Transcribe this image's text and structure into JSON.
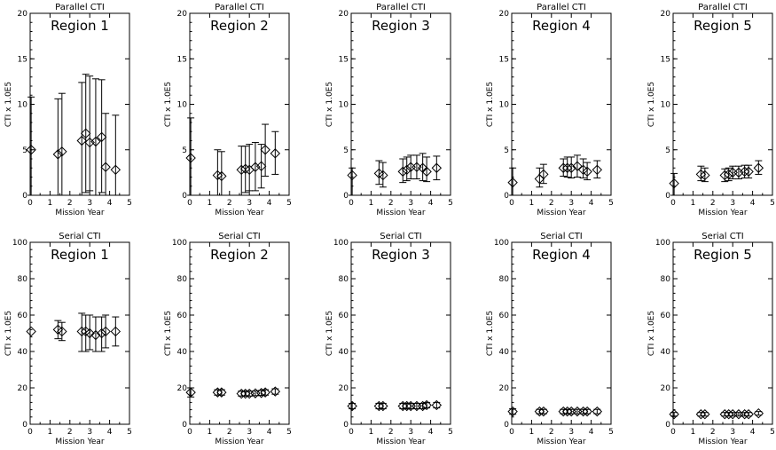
{
  "chart_data": [
    {
      "type": "scatter",
      "row": 0,
      "col": 0,
      "title": "Parallel CTI",
      "region": "Region 1",
      "xlabel": "Mission Year",
      "ylabel": "CTI x 1.0E5",
      "xlim": [
        0,
        5
      ],
      "ylim": [
        0,
        20
      ],
      "xticks": [
        0,
        1,
        2,
        3,
        4,
        5
      ],
      "yticks": [
        0,
        5,
        10,
        15,
        20
      ],
      "points": [
        {
          "x": 0.05,
          "y": 5.0,
          "lo": 0,
          "hi": 10.8
        },
        {
          "x": 1.4,
          "y": 4.5,
          "lo": 0,
          "hi": 10.6
        },
        {
          "x": 1.6,
          "y": 4.8,
          "lo": 0,
          "hi": 11.2
        },
        {
          "x": 2.6,
          "y": 6.0,
          "lo": 0,
          "hi": 12.4
        },
        {
          "x": 2.8,
          "y": 6.8,
          "lo": 0.3,
          "hi": 13.3
        },
        {
          "x": 3.0,
          "y": 5.8,
          "lo": 0.5,
          "hi": 13.1
        },
        {
          "x": 3.3,
          "y": 5.9,
          "lo": 0,
          "hi": 12.8
        },
        {
          "x": 3.6,
          "y": 6.4,
          "lo": 0.3,
          "hi": 12.7
        },
        {
          "x": 3.8,
          "y": 3.1,
          "lo": 0,
          "hi": 9.0
        },
        {
          "x": 4.3,
          "y": 2.8,
          "lo": 0,
          "hi": 8.8
        }
      ]
    },
    {
      "type": "scatter",
      "row": 0,
      "col": 1,
      "title": "Parallel CTI",
      "region": "Region 2",
      "xlabel": "Mission Year",
      "ylabel": "CTI x 1.0E5",
      "xlim": [
        0,
        5
      ],
      "ylim": [
        0,
        20
      ],
      "xticks": [
        0,
        1,
        2,
        3,
        4,
        5
      ],
      "yticks": [
        0,
        5,
        10,
        15,
        20
      ],
      "points": [
        {
          "x": 0.05,
          "y": 4.1,
          "lo": 0,
          "hi": 8.5
        },
        {
          "x": 1.4,
          "y": 2.2,
          "lo": 0,
          "hi": 5.0
        },
        {
          "x": 1.6,
          "y": 2.1,
          "lo": 0,
          "hi": 4.8
        },
        {
          "x": 2.6,
          "y": 2.8,
          "lo": 0,
          "hi": 5.4
        },
        {
          "x": 2.8,
          "y": 2.9,
          "lo": 0.3,
          "hi": 5.4
        },
        {
          "x": 3.0,
          "y": 2.8,
          "lo": 0.5,
          "hi": 5.6
        },
        {
          "x": 3.3,
          "y": 3.1,
          "lo": 0.5,
          "hi": 5.8
        },
        {
          "x": 3.6,
          "y": 3.2,
          "lo": 0.8,
          "hi": 5.6
        },
        {
          "x": 3.8,
          "y": 5.0,
          "lo": 2.1,
          "hi": 7.8
        },
        {
          "x": 4.3,
          "y": 4.6,
          "lo": 2.3,
          "hi": 7.0
        }
      ]
    },
    {
      "type": "scatter",
      "row": 0,
      "col": 2,
      "title": "Parallel CTI",
      "region": "Region 3",
      "xlabel": "Mission Year",
      "ylabel": "CTI x 1.0E5",
      "xlim": [
        0,
        5
      ],
      "ylim": [
        0,
        20
      ],
      "xticks": [
        0,
        1,
        2,
        3,
        4,
        5
      ],
      "yticks": [
        0,
        5,
        10,
        15,
        20
      ],
      "points": [
        {
          "x": 0.05,
          "y": 2.2,
          "lo": 0,
          "hi": 3.0
        },
        {
          "x": 1.4,
          "y": 2.4,
          "lo": 1.2,
          "hi": 3.8
        },
        {
          "x": 1.6,
          "y": 2.2,
          "lo": 0.9,
          "hi": 3.6
        },
        {
          "x": 2.6,
          "y": 2.6,
          "lo": 1.4,
          "hi": 4.0
        },
        {
          "x": 2.8,
          "y": 2.8,
          "lo": 1.6,
          "hi": 4.2
        },
        {
          "x": 3.0,
          "y": 3.1,
          "lo": 1.8,
          "hi": 4.4
        },
        {
          "x": 3.3,
          "y": 3.1,
          "lo": 1.8,
          "hi": 4.4
        },
        {
          "x": 3.6,
          "y": 3.0,
          "lo": 1.6,
          "hi": 4.6
        },
        {
          "x": 3.8,
          "y": 2.6,
          "lo": 1.5,
          "hi": 4.2
        },
        {
          "x": 4.3,
          "y": 3.0,
          "lo": 1.7,
          "hi": 4.3
        }
      ]
    },
    {
      "type": "scatter",
      "row": 0,
      "col": 3,
      "title": "Parallel CTI",
      "region": "Region 4",
      "xlabel": "Mission Year",
      "ylabel": "CTI x 1.0E5",
      "xlim": [
        0,
        5
      ],
      "ylim": [
        0,
        20
      ],
      "xticks": [
        0,
        1,
        2,
        3,
        4,
        5
      ],
      "yticks": [
        0,
        5,
        10,
        15,
        20
      ],
      "points": [
        {
          "x": 0.05,
          "y": 1.4,
          "lo": 0,
          "hi": 3.0
        },
        {
          "x": 1.4,
          "y": 1.8,
          "lo": 0.9,
          "hi": 3.0
        },
        {
          "x": 1.6,
          "y": 2.3,
          "lo": 1.3,
          "hi": 3.4
        },
        {
          "x": 2.6,
          "y": 3.0,
          "lo": 2.1,
          "hi": 4.0
        },
        {
          "x": 2.8,
          "y": 3.0,
          "lo": 2.0,
          "hi": 4.2
        },
        {
          "x": 3.0,
          "y": 3.0,
          "lo": 1.9,
          "hi": 4.2
        },
        {
          "x": 3.3,
          "y": 3.2,
          "lo": 2.0,
          "hi": 4.4
        },
        {
          "x": 3.6,
          "y": 2.8,
          "lo": 1.9,
          "hi": 4.0
        },
        {
          "x": 3.8,
          "y": 2.6,
          "lo": 1.7,
          "hi": 3.6
        },
        {
          "x": 4.3,
          "y": 2.8,
          "lo": 1.9,
          "hi": 3.8
        }
      ]
    },
    {
      "type": "scatter",
      "row": 0,
      "col": 4,
      "title": "Parallel CTI",
      "region": "Region 5",
      "xlabel": "Mission Year",
      "ylabel": "CTI x 1.0E5",
      "xlim": [
        0,
        5
      ],
      "ylim": [
        0,
        20
      ],
      "xticks": [
        0,
        1,
        2,
        3,
        4,
        5
      ],
      "yticks": [
        0,
        5,
        10,
        15,
        20
      ],
      "points": [
        {
          "x": 0.05,
          "y": 1.3,
          "lo": 0,
          "hi": 2.4
        },
        {
          "x": 1.4,
          "y": 2.3,
          "lo": 1.6,
          "hi": 3.2
        },
        {
          "x": 1.6,
          "y": 2.2,
          "lo": 1.5,
          "hi": 3.0
        },
        {
          "x": 2.6,
          "y": 2.2,
          "lo": 1.5,
          "hi": 2.9
        },
        {
          "x": 2.8,
          "y": 2.3,
          "lo": 1.6,
          "hi": 3.0
        },
        {
          "x": 3.0,
          "y": 2.5,
          "lo": 1.8,
          "hi": 3.2
        },
        {
          "x": 3.3,
          "y": 2.5,
          "lo": 1.8,
          "hi": 3.2
        },
        {
          "x": 3.6,
          "y": 2.6,
          "lo": 1.9,
          "hi": 3.3
        },
        {
          "x": 3.8,
          "y": 2.6,
          "lo": 1.9,
          "hi": 3.3
        },
        {
          "x": 4.3,
          "y": 3.0,
          "lo": 2.3,
          "hi": 3.8
        }
      ]
    },
    {
      "type": "scatter",
      "row": 1,
      "col": 0,
      "title": "Serial CTI",
      "region": "Region 1",
      "xlabel": "Mission Year",
      "ylabel": "CTI x 1.0E5",
      "xlim": [
        0,
        5
      ],
      "ylim": [
        0,
        100
      ],
      "xticks": [
        0,
        1,
        2,
        3,
        4,
        5
      ],
      "yticks": [
        0,
        20,
        40,
        60,
        80,
        100
      ],
      "points": [
        {
          "x": 0.05,
          "y": 51,
          "lo": 51,
          "hi": 51
        },
        {
          "x": 1.4,
          "y": 52,
          "lo": 47,
          "hi": 57
        },
        {
          "x": 1.6,
          "y": 51,
          "lo": 46,
          "hi": 56
        },
        {
          "x": 2.6,
          "y": 51,
          "lo": 40,
          "hi": 61
        },
        {
          "x": 2.8,
          "y": 51,
          "lo": 40,
          "hi": 60
        },
        {
          "x": 3.0,
          "y": 50,
          "lo": 41,
          "hi": 60
        },
        {
          "x": 3.3,
          "y": 49,
          "lo": 40,
          "hi": 59
        },
        {
          "x": 3.6,
          "y": 50,
          "lo": 40,
          "hi": 59
        },
        {
          "x": 3.8,
          "y": 51,
          "lo": 42,
          "hi": 60
        },
        {
          "x": 4.3,
          "y": 51,
          "lo": 43,
          "hi": 59
        }
      ]
    },
    {
      "type": "scatter",
      "row": 1,
      "col": 1,
      "title": "Serial CTI",
      "region": "Region 2",
      "xlabel": "Mission Year",
      "ylabel": "CTI x 1.0E5",
      "xlim": [
        0,
        5
      ],
      "ylim": [
        0,
        100
      ],
      "xticks": [
        0,
        1,
        2,
        3,
        4,
        5
      ],
      "yticks": [
        0,
        20,
        40,
        60,
        80,
        100
      ],
      "points": [
        {
          "x": 0.05,
          "y": 17.5,
          "lo": 15,
          "hi": 20
        },
        {
          "x": 1.4,
          "y": 17.5,
          "lo": 16,
          "hi": 19
        },
        {
          "x": 1.6,
          "y": 17.5,
          "lo": 16,
          "hi": 19
        },
        {
          "x": 2.6,
          "y": 16.8,
          "lo": 15.5,
          "hi": 18.2
        },
        {
          "x": 2.8,
          "y": 16.8,
          "lo": 15.5,
          "hi": 18.2
        },
        {
          "x": 3.0,
          "y": 16.8,
          "lo": 15.5,
          "hi": 18.2
        },
        {
          "x": 3.3,
          "y": 17.0,
          "lo": 15.7,
          "hi": 18.3
        },
        {
          "x": 3.6,
          "y": 17.2,
          "lo": 15.8,
          "hi": 18.6
        },
        {
          "x": 3.8,
          "y": 17.5,
          "lo": 16,
          "hi": 19
        },
        {
          "x": 4.3,
          "y": 18.0,
          "lo": 16.5,
          "hi": 19.5
        }
      ]
    },
    {
      "type": "scatter",
      "row": 1,
      "col": 2,
      "title": "Serial CTI",
      "region": "Region 3",
      "xlabel": "Mission Year",
      "ylabel": "CTI x 1.0E5",
      "xlim": [
        0,
        5
      ],
      "ylim": [
        0,
        100
      ],
      "xticks": [
        0,
        1,
        2,
        3,
        4,
        5
      ],
      "yticks": [
        0,
        20,
        40,
        60,
        80,
        100
      ],
      "points": [
        {
          "x": 0.05,
          "y": 10,
          "lo": 8.5,
          "hi": 11.5
        },
        {
          "x": 1.4,
          "y": 10,
          "lo": 8.5,
          "hi": 11.5
        },
        {
          "x": 1.6,
          "y": 10,
          "lo": 8.5,
          "hi": 11.5
        },
        {
          "x": 2.6,
          "y": 10,
          "lo": 8.5,
          "hi": 11.5
        },
        {
          "x": 2.8,
          "y": 10,
          "lo": 8.5,
          "hi": 11.5
        },
        {
          "x": 3.0,
          "y": 10,
          "lo": 8.5,
          "hi": 11.5
        },
        {
          "x": 3.3,
          "y": 10,
          "lo": 8.5,
          "hi": 11.5
        },
        {
          "x": 3.6,
          "y": 10,
          "lo": 8.5,
          "hi": 11.5
        },
        {
          "x": 3.8,
          "y": 10.5,
          "lo": 9,
          "hi": 12
        },
        {
          "x": 4.3,
          "y": 10.5,
          "lo": 9,
          "hi": 12
        }
      ]
    },
    {
      "type": "scatter",
      "row": 1,
      "col": 3,
      "title": "Serial CTI",
      "region": "Region 4",
      "xlabel": "Mission Year",
      "ylabel": "CTI x 1.0E5",
      "xlim": [
        0,
        5
      ],
      "ylim": [
        0,
        100
      ],
      "xticks": [
        0,
        1,
        2,
        3,
        4,
        5
      ],
      "yticks": [
        0,
        20,
        40,
        60,
        80,
        100
      ],
      "points": [
        {
          "x": 0.05,
          "y": 7,
          "lo": 5.5,
          "hi": 8.5
        },
        {
          "x": 1.4,
          "y": 7,
          "lo": 5.8,
          "hi": 8.2
        },
        {
          "x": 1.6,
          "y": 7,
          "lo": 5.8,
          "hi": 8.2
        },
        {
          "x": 2.6,
          "y": 7,
          "lo": 5.8,
          "hi": 8.2
        },
        {
          "x": 2.8,
          "y": 7,
          "lo": 5.8,
          "hi": 8.2
        },
        {
          "x": 3.0,
          "y": 7,
          "lo": 5.8,
          "hi": 8.2
        },
        {
          "x": 3.3,
          "y": 7,
          "lo": 5.8,
          "hi": 8.2
        },
        {
          "x": 3.6,
          "y": 7,
          "lo": 5.8,
          "hi": 8.2
        },
        {
          "x": 3.8,
          "y": 7,
          "lo": 5.8,
          "hi": 8.2
        },
        {
          "x": 4.3,
          "y": 7,
          "lo": 5.8,
          "hi": 8.2
        }
      ]
    },
    {
      "type": "scatter",
      "row": 1,
      "col": 4,
      "title": "Serial CTI",
      "region": "Region 5",
      "xlabel": "Mission Year",
      "ylabel": "CTI x 1.0E5",
      "xlim": [
        0,
        5
      ],
      "ylim": [
        0,
        100
      ],
      "xticks": [
        0,
        1,
        2,
        3,
        4,
        5
      ],
      "yticks": [
        0,
        20,
        40,
        60,
        80,
        100
      ],
      "points": [
        {
          "x": 0.05,
          "y": 5.5,
          "lo": 4.5,
          "hi": 6.5
        },
        {
          "x": 1.4,
          "y": 5.5,
          "lo": 4.5,
          "hi": 6.5
        },
        {
          "x": 1.6,
          "y": 5.5,
          "lo": 4.5,
          "hi": 6.5
        },
        {
          "x": 2.6,
          "y": 5.5,
          "lo": 4.5,
          "hi": 6.5
        },
        {
          "x": 2.8,
          "y": 5.5,
          "lo": 4.5,
          "hi": 6.5
        },
        {
          "x": 3.0,
          "y": 5.5,
          "lo": 4.5,
          "hi": 6.5
        },
        {
          "x": 3.3,
          "y": 5.5,
          "lo": 4.5,
          "hi": 6.5
        },
        {
          "x": 3.6,
          "y": 5.5,
          "lo": 4.5,
          "hi": 6.5
        },
        {
          "x": 3.8,
          "y": 5.5,
          "lo": 4.5,
          "hi": 6.5
        },
        {
          "x": 4.3,
          "y": 6.0,
          "lo": 5,
          "hi": 7
        }
      ]
    }
  ]
}
